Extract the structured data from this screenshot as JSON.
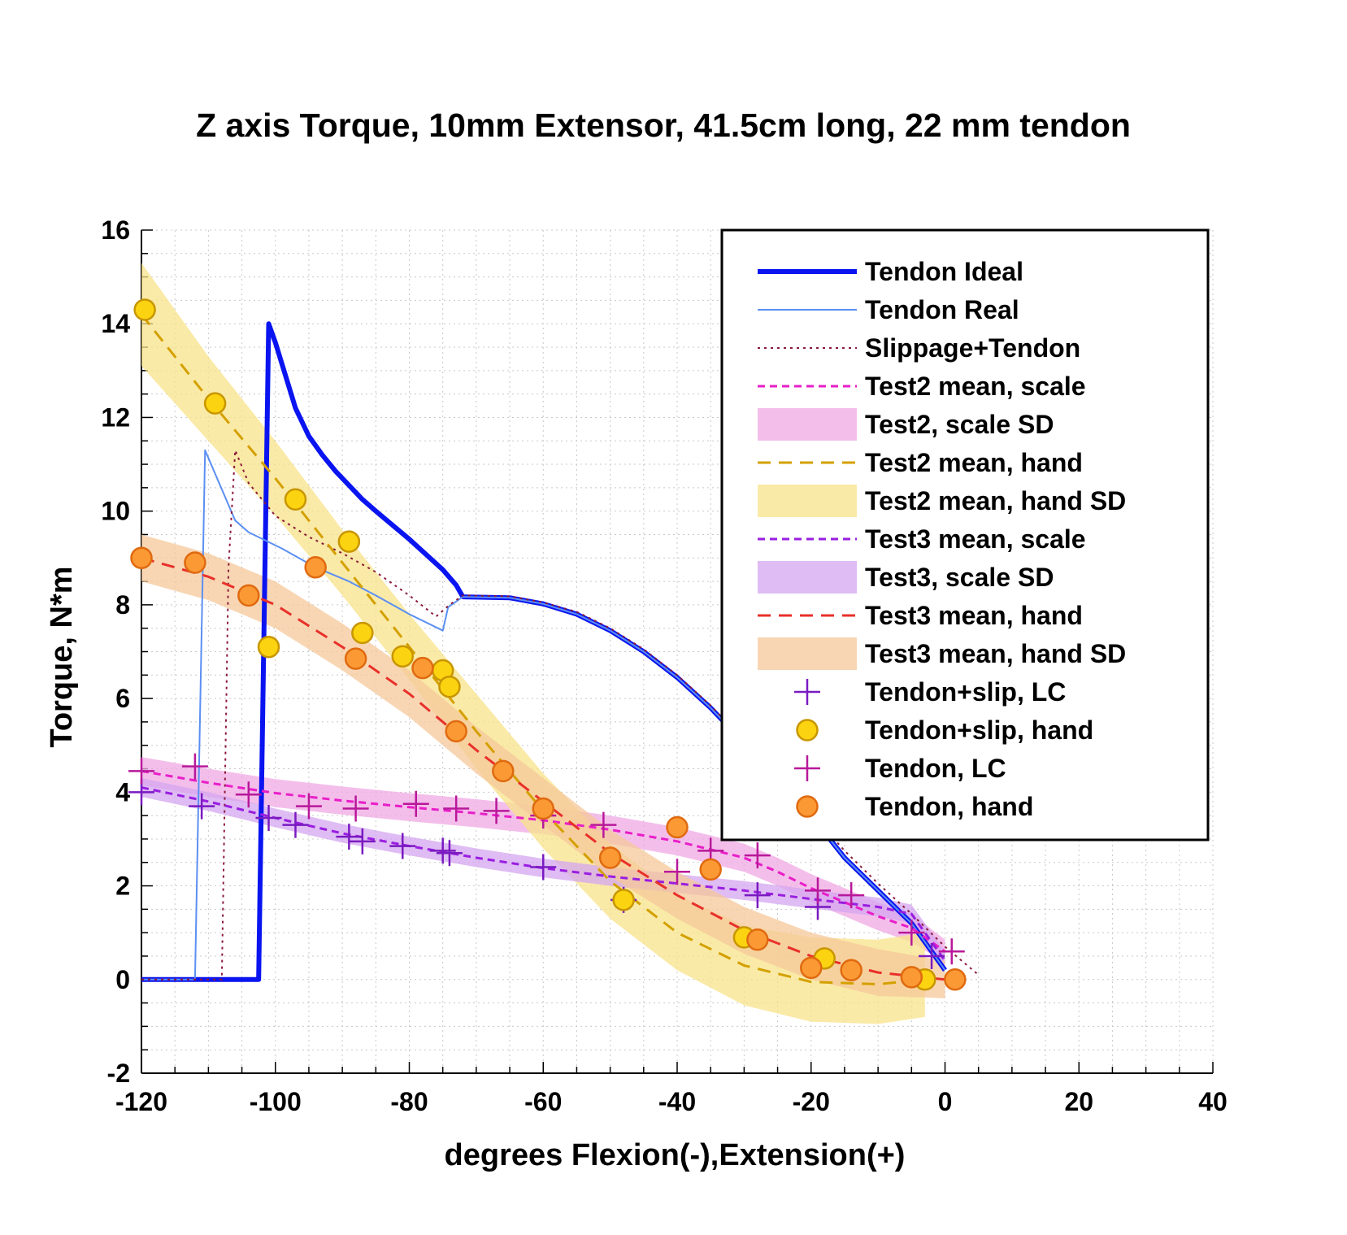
{
  "chart_data": {
    "type": "line",
    "title": "Z axis Torque, 10mm Extensor, 41.5cm long, 22 mm tendon",
    "xlabel": "degrees Flexion(-),Extension(+)",
    "ylabel": "Torque, N*m",
    "xlim": [
      -120,
      40
    ],
    "ylim": [
      -2,
      16
    ],
    "xticks": [
      -120,
      -100,
      -80,
      -60,
      -40,
      -20,
      0,
      20,
      40
    ],
    "yticks": [
      -2,
      0,
      2,
      4,
      6,
      8,
      10,
      12,
      14,
      16
    ],
    "grid": true,
    "legend_position": "top-right",
    "colors": {
      "tendon_ideal": "#0a14f0",
      "tendon_real": "#5b8ff2",
      "slippage": "#8b1a3a",
      "test2_scale": "#e81ec8",
      "test2_scale_sd": "#f0a8e4",
      "test2_hand": "#d4a000",
      "test2_hand_sd": "#f8e38a",
      "test3_scale": "#9a1ee0",
      "test3_scale_sd": "#d4a6f0",
      "test3_hand": "#e8302a",
      "test3_hand_sd": "#f6c89a",
      "marker_lc_slip": "#7a1ac0",
      "marker_lc": "#b8189a",
      "marker_yellow": "#fcd310",
      "marker_orange": "#fb9a35"
    },
    "series": [
      {
        "name": "Tendon Ideal",
        "kind": "line",
        "style": "solid-thick",
        "color_key": "tendon_ideal",
        "x": [
          -120,
          -102.5,
          -101,
          -100,
          -97,
          -95,
          -93,
          -91,
          -89,
          -87,
          -85,
          -80,
          -75,
          -73,
          -72,
          -65,
          -60,
          -55,
          -50,
          -45,
          -40,
          -35,
          -30,
          -25,
          -20,
          -15,
          -10,
          -5,
          0
        ],
        "y": [
          0,
          0,
          14,
          13.6,
          12.2,
          11.6,
          11.2,
          10.85,
          10.55,
          10.25,
          10.0,
          9.4,
          8.75,
          8.42,
          8.17,
          8.15,
          8.02,
          7.8,
          7.45,
          7.0,
          6.45,
          5.8,
          5.05,
          4.3,
          3.5,
          2.6,
          1.9,
          1.2,
          0.2
        ]
      },
      {
        "name": "Tendon Real",
        "kind": "line",
        "style": "solid-thin",
        "color_key": "tendon_real",
        "x": [
          -120,
          -112,
          -110.5,
          -106,
          -104,
          -99,
          -94,
          -89,
          -85,
          -80,
          -75,
          -74.2,
          -72,
          -65,
          -60,
          -55,
          -50,
          -45,
          -40,
          -35,
          -30,
          -25,
          -20,
          -15,
          -10,
          -5,
          0
        ],
        "y": [
          0,
          0,
          11.3,
          9.8,
          9.55,
          9.2,
          8.8,
          8.5,
          8.2,
          7.8,
          7.45,
          7.95,
          8.17,
          8.15,
          8.02,
          7.8,
          7.45,
          7.0,
          6.45,
          5.8,
          5.05,
          4.3,
          3.5,
          2.6,
          1.9,
          1.2,
          0.2
        ]
      },
      {
        "name": "Slippage+Tendon",
        "kind": "line",
        "style": "dotted",
        "color_key": "slippage",
        "x": [
          -120,
          -108,
          -107,
          -106,
          -104,
          -100,
          -95,
          -90,
          -85,
          -80,
          -76,
          -74,
          -72,
          -65,
          -60,
          -55,
          -50,
          -45,
          -40,
          -35,
          -30,
          -25,
          -20,
          -15,
          -10,
          -5,
          0,
          5
        ],
        "y": [
          0,
          0,
          8.8,
          11.3,
          10.6,
          9.9,
          9.45,
          9.1,
          8.7,
          8.2,
          7.75,
          8.0,
          8.2,
          8.18,
          8.05,
          7.85,
          7.5,
          7.05,
          6.5,
          5.85,
          5.1,
          4.35,
          3.55,
          2.75,
          2.05,
          1.4,
          0.7,
          0.1
        ]
      },
      {
        "name": "Test2 mean, scale",
        "kind": "line",
        "style": "dashed",
        "color_key": "test2_scale",
        "x": [
          -120,
          -110,
          -100,
          -90,
          -80,
          -70,
          -60,
          -50,
          -40,
          -30,
          -25,
          -20,
          -15,
          -10,
          -5,
          0
        ],
        "y": [
          4.45,
          4.2,
          3.98,
          3.82,
          3.68,
          3.55,
          3.4,
          3.2,
          2.95,
          2.6,
          2.3,
          1.95,
          1.65,
          1.35,
          1.1,
          0.6
        ]
      },
      {
        "name": "Test2, scale SD",
        "kind": "band",
        "color_key": "test2_scale_sd",
        "x": [
          -120,
          -110,
          -100,
          -90,
          -80,
          -70,
          -60,
          -50,
          -40,
          -30,
          -25,
          -20,
          -15,
          -10,
          -5,
          0
        ],
        "upper": [
          4.75,
          4.5,
          4.28,
          4.12,
          3.98,
          3.85,
          3.7,
          3.5,
          3.25,
          2.9,
          2.6,
          2.25,
          1.95,
          1.65,
          1.4,
          0.85
        ],
        "lower": [
          4.15,
          3.9,
          3.68,
          3.52,
          3.38,
          3.25,
          3.1,
          2.9,
          2.65,
          2.3,
          2.0,
          1.65,
          1.35,
          1.05,
          0.8,
          0.35
        ]
      },
      {
        "name": "Test2 mean, hand",
        "kind": "line",
        "style": "dashed",
        "color_key": "test2_hand",
        "x": [
          -120,
          -110,
          -100,
          -90,
          -80,
          -70,
          -60,
          -50,
          -40,
          -30,
          -20,
          -10,
          -3
        ],
        "y": [
          14.2,
          12.4,
          10.7,
          8.9,
          7.1,
          5.3,
          3.6,
          2.1,
          1.0,
          0.3,
          -0.05,
          -0.1,
          0.0
        ]
      },
      {
        "name": "Test2 mean, hand SD",
        "kind": "band",
        "color_key": "test2_hand_sd",
        "x": [
          -120,
          -110,
          -100,
          -90,
          -80,
          -70,
          -60,
          -50,
          -40,
          -30,
          -20,
          -10,
          -3
        ],
        "upper": [
          15.3,
          13.3,
          11.5,
          9.6,
          7.8,
          6.1,
          4.4,
          2.9,
          1.8,
          1.15,
          0.9,
          0.85,
          1.0
        ],
        "lower": [
          13.1,
          11.5,
          9.9,
          8.2,
          6.4,
          4.5,
          2.8,
          1.3,
          0.2,
          -0.55,
          -0.9,
          -0.95,
          -0.8
        ]
      },
      {
        "name": "Test3 mean, scale",
        "kind": "line",
        "style": "dashed",
        "color_key": "test3_scale",
        "x": [
          -120,
          -110,
          -100,
          -90,
          -80,
          -70,
          -60,
          -50,
          -40,
          -30,
          -20,
          -10,
          -5,
          0
        ],
        "y": [
          4.1,
          3.8,
          3.45,
          3.12,
          2.85,
          2.6,
          2.38,
          2.2,
          2.05,
          1.9,
          1.72,
          1.55,
          1.4,
          0.4
        ]
      },
      {
        "name": "Test3, scale SD",
        "kind": "band",
        "color_key": "test3_scale_sd",
        "x": [
          -120,
          -110,
          -100,
          -90,
          -80,
          -70,
          -60,
          -50,
          -40,
          -30,
          -20,
          -10,
          -5,
          0
        ],
        "upper": [
          4.3,
          4.0,
          3.65,
          3.32,
          3.05,
          2.8,
          2.58,
          2.4,
          2.25,
          2.1,
          1.92,
          1.75,
          1.6,
          0.6
        ],
        "lower": [
          3.9,
          3.6,
          3.25,
          2.92,
          2.65,
          2.4,
          2.18,
          2.0,
          1.85,
          1.7,
          1.52,
          1.35,
          1.2,
          0.2
        ]
      },
      {
        "name": "Test3 mean, hand",
        "kind": "line",
        "style": "dashed",
        "color_key": "test3_hand",
        "x": [
          -120,
          -110,
          -100,
          -90,
          -80,
          -70,
          -60,
          -50,
          -40,
          -30,
          -20,
          -10,
          0
        ],
        "y": [
          9.0,
          8.6,
          8.0,
          7.1,
          6.1,
          4.9,
          3.8,
          2.7,
          1.8,
          1.05,
          0.5,
          0.15,
          0.0
        ]
      },
      {
        "name": "Test3 mean, hand SD",
        "kind": "band",
        "color_key": "test3_hand_sd",
        "x": [
          -120,
          -110,
          -100,
          -90,
          -80,
          -70,
          -60,
          -50,
          -40,
          -30,
          -20,
          -10,
          0
        ],
        "upper": [
          9.5,
          9.1,
          8.5,
          7.6,
          6.6,
          5.4,
          4.3,
          3.2,
          2.3,
          1.55,
          1.0,
          0.65,
          0.4
        ],
        "lower": [
          8.5,
          8.1,
          7.5,
          6.6,
          5.6,
          4.4,
          3.3,
          2.2,
          1.3,
          0.55,
          0.0,
          -0.35,
          -0.4
        ]
      },
      {
        "name": "Tendon+slip, LC",
        "kind": "marker",
        "marker": "plus",
        "color_key": "marker_lc_slip",
        "x": [
          -120,
          -111,
          -101,
          -97,
          -89,
          -87,
          -81,
          -75,
          -74,
          -60,
          -48,
          -28,
          -19,
          -2
        ],
        "y": [
          4.0,
          3.7,
          3.45,
          3.3,
          3.05,
          2.95,
          2.85,
          2.75,
          2.7,
          2.4,
          1.7,
          1.8,
          1.55,
          0.5
        ]
      },
      {
        "name": "Tendon+slip, hand",
        "kind": "marker",
        "marker": "circle",
        "color_key": "marker_yellow",
        "x": [
          -119.5,
          -109,
          -101,
          -97,
          -89,
          -87,
          -81,
          -75,
          -74,
          -48,
          -30,
          -18,
          -3
        ],
        "y": [
          14.3,
          12.3,
          7.1,
          10.25,
          9.35,
          7.4,
          6.9,
          6.6,
          6.25,
          1.7,
          0.9,
          0.45,
          0.0
        ]
      },
      {
        "name": "Tendon, LC",
        "kind": "marker",
        "marker": "plus",
        "color_key": "marker_lc",
        "x": [
          -120,
          -112,
          -104,
          -95,
          -88,
          -79,
          -73,
          -67,
          -60,
          -51,
          -40,
          -35,
          -28,
          -19,
          -14,
          -5,
          1
        ],
        "y": [
          4.45,
          4.55,
          3.95,
          3.7,
          3.65,
          3.75,
          3.65,
          3.6,
          3.5,
          3.3,
          2.3,
          2.75,
          2.65,
          1.9,
          1.8,
          1.0,
          0.6
        ]
      },
      {
        "name": "Tendon, hand",
        "kind": "marker",
        "marker": "circle",
        "color_key": "marker_orange",
        "x": [
          -120,
          -112,
          -104,
          -94,
          -88,
          -78,
          -73,
          -66,
          -60,
          -50,
          -40,
          -35,
          -28,
          -20,
          -14,
          -5,
          1.5
        ],
        "y": [
          9.0,
          8.9,
          8.2,
          8.8,
          6.85,
          6.65,
          5.3,
          4.45,
          3.65,
          2.6,
          3.25,
          2.35,
          0.85,
          0.25,
          0.2,
          0.05,
          0.0
        ]
      }
    ]
  }
}
